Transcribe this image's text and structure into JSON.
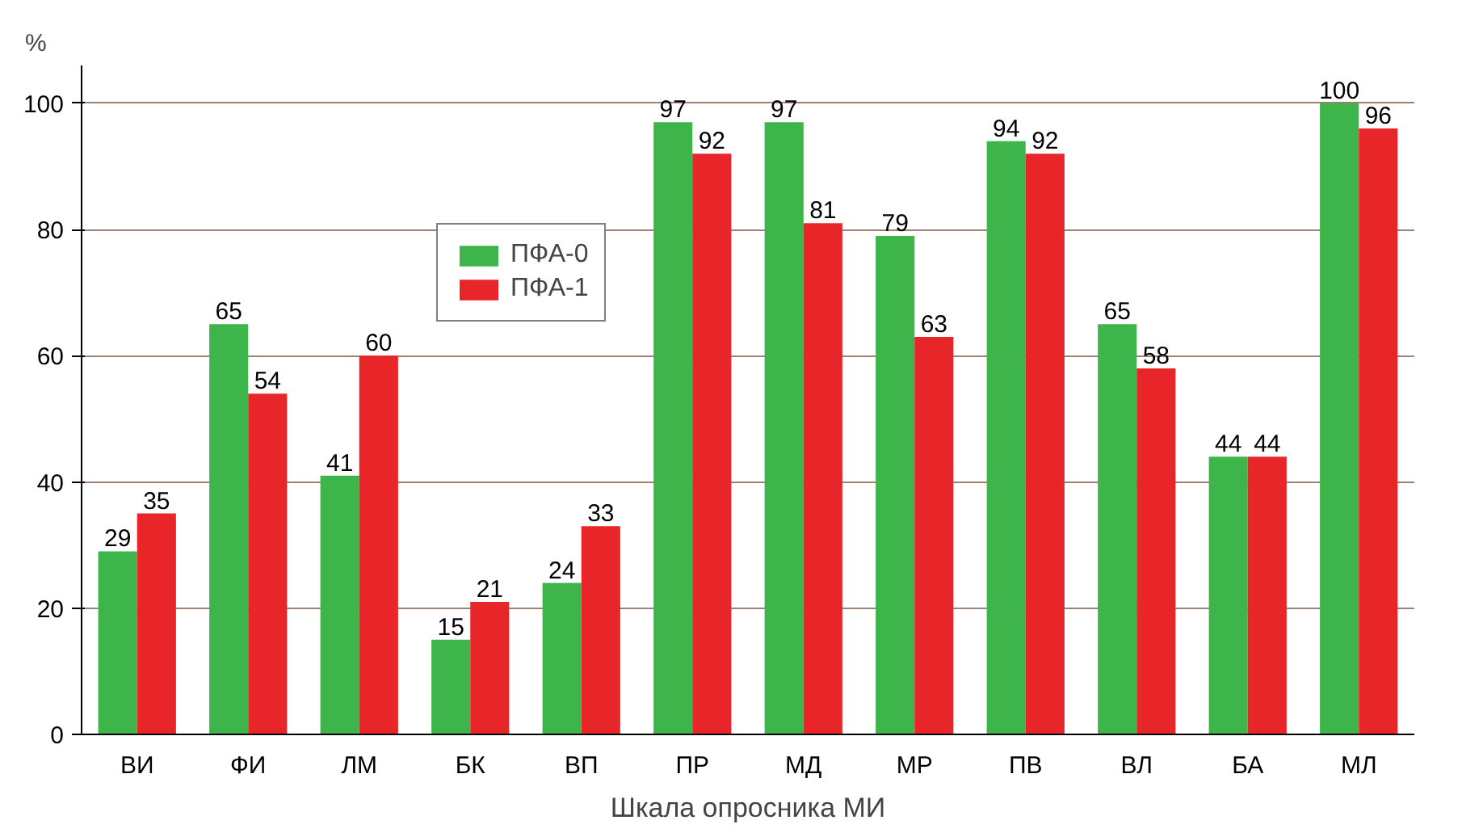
{
  "chart_data": {
    "type": "bar",
    "xlabel": "Шкала опросника МИ",
    "ylabel": "%",
    "categories": [
      "ВИ",
      "ФИ",
      "ЛМ",
      "БК",
      "ВП",
      "ПР",
      "МД",
      "МР",
      "ПВ",
      "ВЛ",
      "БА",
      "МЛ"
    ],
    "series": [
      {
        "name": "ПФА-0",
        "color": "#3db54a",
        "values": [
          29,
          65,
          41,
          15,
          24,
          97,
          97,
          79,
          94,
          65,
          44,
          100
        ]
      },
      {
        "name": "ПФА-1",
        "color": "#e8262a",
        "values": [
          35,
          54,
          60,
          21,
          33,
          92,
          81,
          63,
          92,
          58,
          44,
          96
        ]
      }
    ],
    "ylim": [
      0,
      100
    ],
    "yticks": [
      0,
      20,
      40,
      60,
      80,
      100
    ],
    "grid": "y",
    "legend": "top left",
    "data_labels": true
  }
}
